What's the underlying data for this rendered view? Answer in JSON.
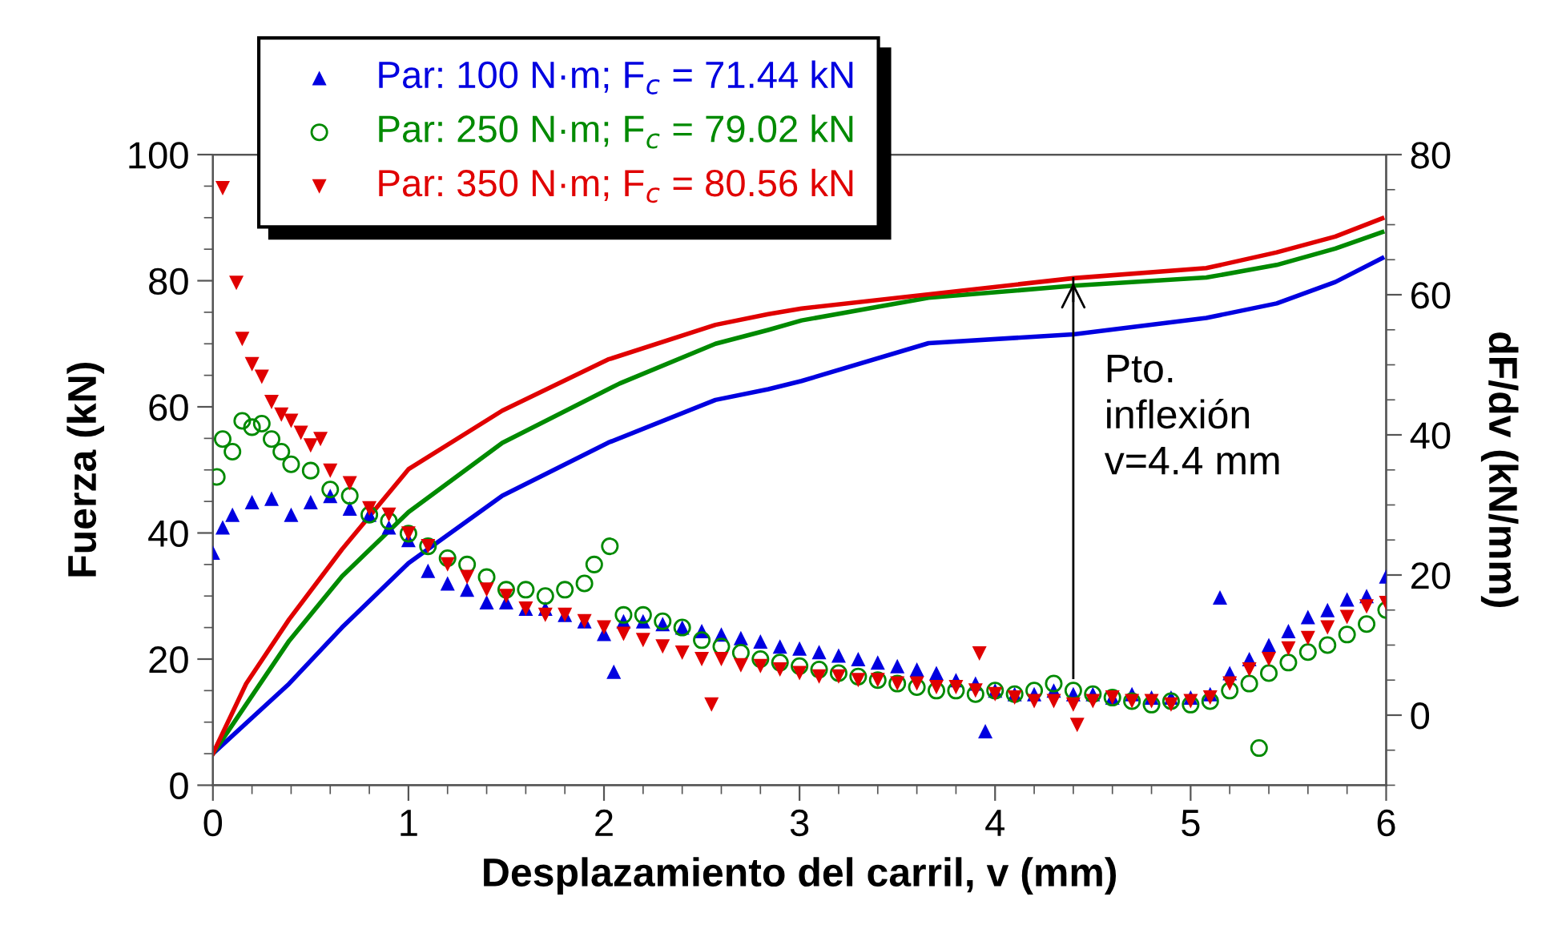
{
  "chart_data": {
    "type": "scatter",
    "xlabel": "Desplazamiento del carril, v (mm)",
    "ylabel": "Fuerza (kN)",
    "y2label": "dF/dv (kN/mm)",
    "xlim": [
      0,
      6
    ],
    "xticks": [
      0,
      1,
      2,
      3,
      4,
      5,
      6
    ],
    "ylim": [
      0,
      100
    ],
    "yticks": [
      0,
      20,
      40,
      60,
      80,
      100
    ],
    "y2lim": [
      -10,
      80
    ],
    "y2ticks": [
      0,
      20,
      40,
      60,
      80
    ],
    "grid": false,
    "legend": "top left",
    "ref_lines": [
      {
        "axis": "x",
        "value": 4.4,
        "label": "Pto.\ninflexión\nv=4.4 mm",
        "color": "#000000",
        "line_style": "solid"
      }
    ],
    "series": [
      {
        "type": "line",
        "axis": "y",
        "color": "#0000e0",
        "marker": "none",
        "line_style": "solid",
        "x": [
          0,
          0.39,
          0.66,
          1.0,
          1.48,
          2.02,
          2.57,
          2.84,
          3.01,
          3.66,
          4.4,
          5.08,
          5.44,
          5.74,
          5.98
        ],
        "values": [
          5,
          16.1,
          25,
          35.2,
          45.9,
          54.3,
          61.1,
          62.8,
          64.1,
          70.1,
          71.5,
          74.1,
          76.4,
          79.8,
          83.6
        ]
      },
      {
        "type": "line",
        "axis": "y",
        "color": "#008a00",
        "marker": "none",
        "line_style": "solid",
        "x": [
          0,
          0.39,
          0.66,
          1.0,
          1.48,
          2.08,
          2.57,
          2.84,
          3.01,
          3.66,
          4.4,
          5.08,
          5.44,
          5.74,
          5.98
        ],
        "values": [
          5,
          22.9,
          33.1,
          43.3,
          54.3,
          63.7,
          70,
          72.2,
          73.7,
          77.3,
          79.2,
          80.5,
          82.5,
          85.1,
          87.7
        ]
      },
      {
        "type": "line",
        "axis": "y",
        "color": "#e00000",
        "marker": "none",
        "line_style": "solid",
        "x": [
          0,
          0.17,
          0.39,
          0.66,
          1.0,
          1.48,
          2.02,
          2.57,
          2.84,
          3.01,
          4.4,
          5.08,
          5.44,
          5.74,
          5.98
        ],
        "values": [
          5,
          16.1,
          26.3,
          37.4,
          50.1,
          59.4,
          67.5,
          73,
          74.7,
          75.6,
          80.4,
          82,
          84.5,
          87,
          89.9
        ]
      },
      {
        "axis": "y2",
        "name": "Par: 100 N·m; F$_{c}$ = 71.44 kN",
        "color": "#0000e0",
        "marker": "triangle",
        "x": [
          0,
          0.05,
          0.1,
          0.2,
          0.3,
          0.4,
          0.5,
          0.6,
          0.7,
          0.8,
          0.9,
          1.0,
          1.1,
          1.2,
          1.3,
          1.4,
          1.5,
          1.6,
          1.7,
          1.8,
          1.9,
          2.0,
          2.05,
          2.1,
          2.2,
          2.3,
          2.4,
          2.5,
          2.6,
          2.7,
          2.8,
          2.9,
          3.0,
          3.1,
          3.2,
          3.3,
          3.4,
          3.5,
          3.6,
          3.7,
          3.8,
          3.9,
          3.95,
          4.0,
          4.1,
          4.2,
          4.3,
          4.4,
          4.5,
          4.6,
          4.7,
          4.8,
          4.9,
          5.0,
          5.1,
          5.15,
          5.2,
          5.3,
          5.4,
          5.5,
          5.6,
          5.7,
          5.8,
          5.9,
          6.0
        ],
        "values": [
          23.2,
          26.8,
          28.6,
          30.4,
          30.9,
          28.6,
          30.4,
          31.3,
          29.5,
          28.6,
          26.8,
          25.0,
          20.6,
          18.8,
          17.9,
          16.1,
          16.1,
          15.2,
          15.2,
          14.3,
          13.4,
          11.6,
          6.2,
          13.4,
          13.4,
          13.0,
          12.5,
          12.0,
          11.5,
          11.0,
          10.5,
          9.8,
          9.5,
          9.0,
          8.5,
          8.0,
          7.5,
          7.0,
          6.5,
          6.0,
          5.0,
          4.5,
          -2.3,
          3.5,
          3.0,
          3.0,
          3.5,
          3.0,
          3.0,
          2.5,
          3.0,
          2.5,
          2.5,
          2.5,
          3.0,
          16.8,
          6.0,
          8.0,
          10.0,
          12.0,
          14.0,
          15.0,
          16.5,
          17.0,
          19.8
        ]
      },
      {
        "axis": "y2",
        "name": "Par: 250 N·m; F$_{c}$ = 79.02 kN",
        "color": "#008a00",
        "marker": "circle_open",
        "x": [
          0.02,
          0.05,
          0.1,
          0.15,
          0.2,
          0.25,
          0.3,
          0.35,
          0.4,
          0.5,
          0.6,
          0.7,
          0.8,
          0.9,
          1.0,
          1.1,
          1.2,
          1.3,
          1.4,
          1.5,
          1.6,
          1.7,
          1.8,
          1.9,
          1.95,
          2.03,
          2.1,
          2.2,
          2.3,
          2.4,
          2.5,
          2.6,
          2.7,
          2.8,
          2.9,
          3.0,
          3.1,
          3.2,
          3.3,
          3.4,
          3.5,
          3.6,
          3.7,
          3.8,
          3.9,
          4.0,
          4.1,
          4.2,
          4.3,
          4.4,
          4.5,
          4.6,
          4.7,
          4.8,
          4.9,
          5.0,
          5.1,
          5.2,
          5.3,
          5.35,
          5.4,
          5.5,
          5.6,
          5.7,
          5.8,
          5.9,
          6.0
        ],
        "values": [
          34.0,
          39.4,
          37.6,
          42.0,
          41.1,
          41.6,
          39.4,
          37.6,
          35.8,
          34.9,
          32.2,
          31.3,
          28.6,
          27.7,
          25.9,
          24.1,
          22.4,
          21.5,
          19.7,
          17.9,
          17.9,
          17.0,
          17.9,
          18.8,
          21.5,
          24.1,
          14.3,
          14.3,
          13.4,
          12.5,
          10.7,
          9.8,
          8.9,
          8.0,
          7.5,
          7.0,
          6.5,
          6.0,
          5.5,
          5.0,
          4.5,
          4.0,
          3.5,
          3.5,
          3.0,
          3.5,
          3.0,
          3.5,
          4.5,
          3.5,
          3.0,
          2.5,
          2.0,
          1.5,
          2.0,
          1.5,
          2.0,
          3.5,
          4.5,
          -4.7,
          6.0,
          7.5,
          9.0,
          10.0,
          11.5,
          13.0,
          15.0
        ]
      },
      {
        "axis": "y2",
        "name": "Par: 350 N·m; F$_{c}$ = 80.56 kN",
        "color": "#e00000",
        "marker": "triangle_down",
        "x": [
          0.05,
          0.12,
          0.15,
          0.2,
          0.25,
          0.3,
          0.35,
          0.4,
          0.45,
          0.5,
          0.55,
          0.6,
          0.7,
          0.8,
          0.9,
          1.0,
          1.1,
          1.2,
          1.3,
          1.4,
          1.5,
          1.6,
          1.7,
          1.8,
          1.9,
          2.0,
          2.1,
          2.2,
          2.3,
          2.4,
          2.5,
          2.55,
          2.6,
          2.7,
          2.8,
          2.9,
          3.0,
          3.1,
          3.2,
          3.3,
          3.4,
          3.5,
          3.6,
          3.7,
          3.8,
          3.9,
          3.92,
          4.0,
          4.1,
          4.2,
          4.3,
          4.4,
          4.42,
          4.5,
          4.6,
          4.7,
          4.8,
          4.9,
          5.0,
          5.1,
          5.2,
          5.3,
          5.4,
          5.5,
          5.6,
          5.7,
          5.8,
          5.9,
          6.0
        ],
        "values": [
          75.2,
          61.7,
          53.7,
          50.1,
          48.3,
          44.7,
          42.9,
          42.0,
          40.3,
          38.5,
          39.4,
          34.9,
          33.1,
          29.5,
          28.6,
          25.9,
          24.1,
          21.5,
          19.7,
          17.9,
          17.0,
          15.2,
          14.3,
          14.3,
          13.4,
          12.5,
          11.6,
          10.7,
          9.8,
          8.9,
          8.0,
          1.5,
          8.0,
          7.1,
          7.0,
          6.5,
          6.0,
          5.5,
          5.5,
          5.0,
          5.0,
          4.5,
          4.5,
          4.0,
          4.0,
          3.5,
          8.8,
          3.0,
          2.5,
          2.0,
          2.0,
          1.5,
          -1.4,
          2.0,
          2.5,
          2.0,
          2.0,
          1.5,
          2.0,
          2.5,
          4.5,
          6.5,
          8.0,
          9.5,
          11.0,
          12.5,
          14.0,
          15.5,
          16.0
        ]
      }
    ]
  }
}
